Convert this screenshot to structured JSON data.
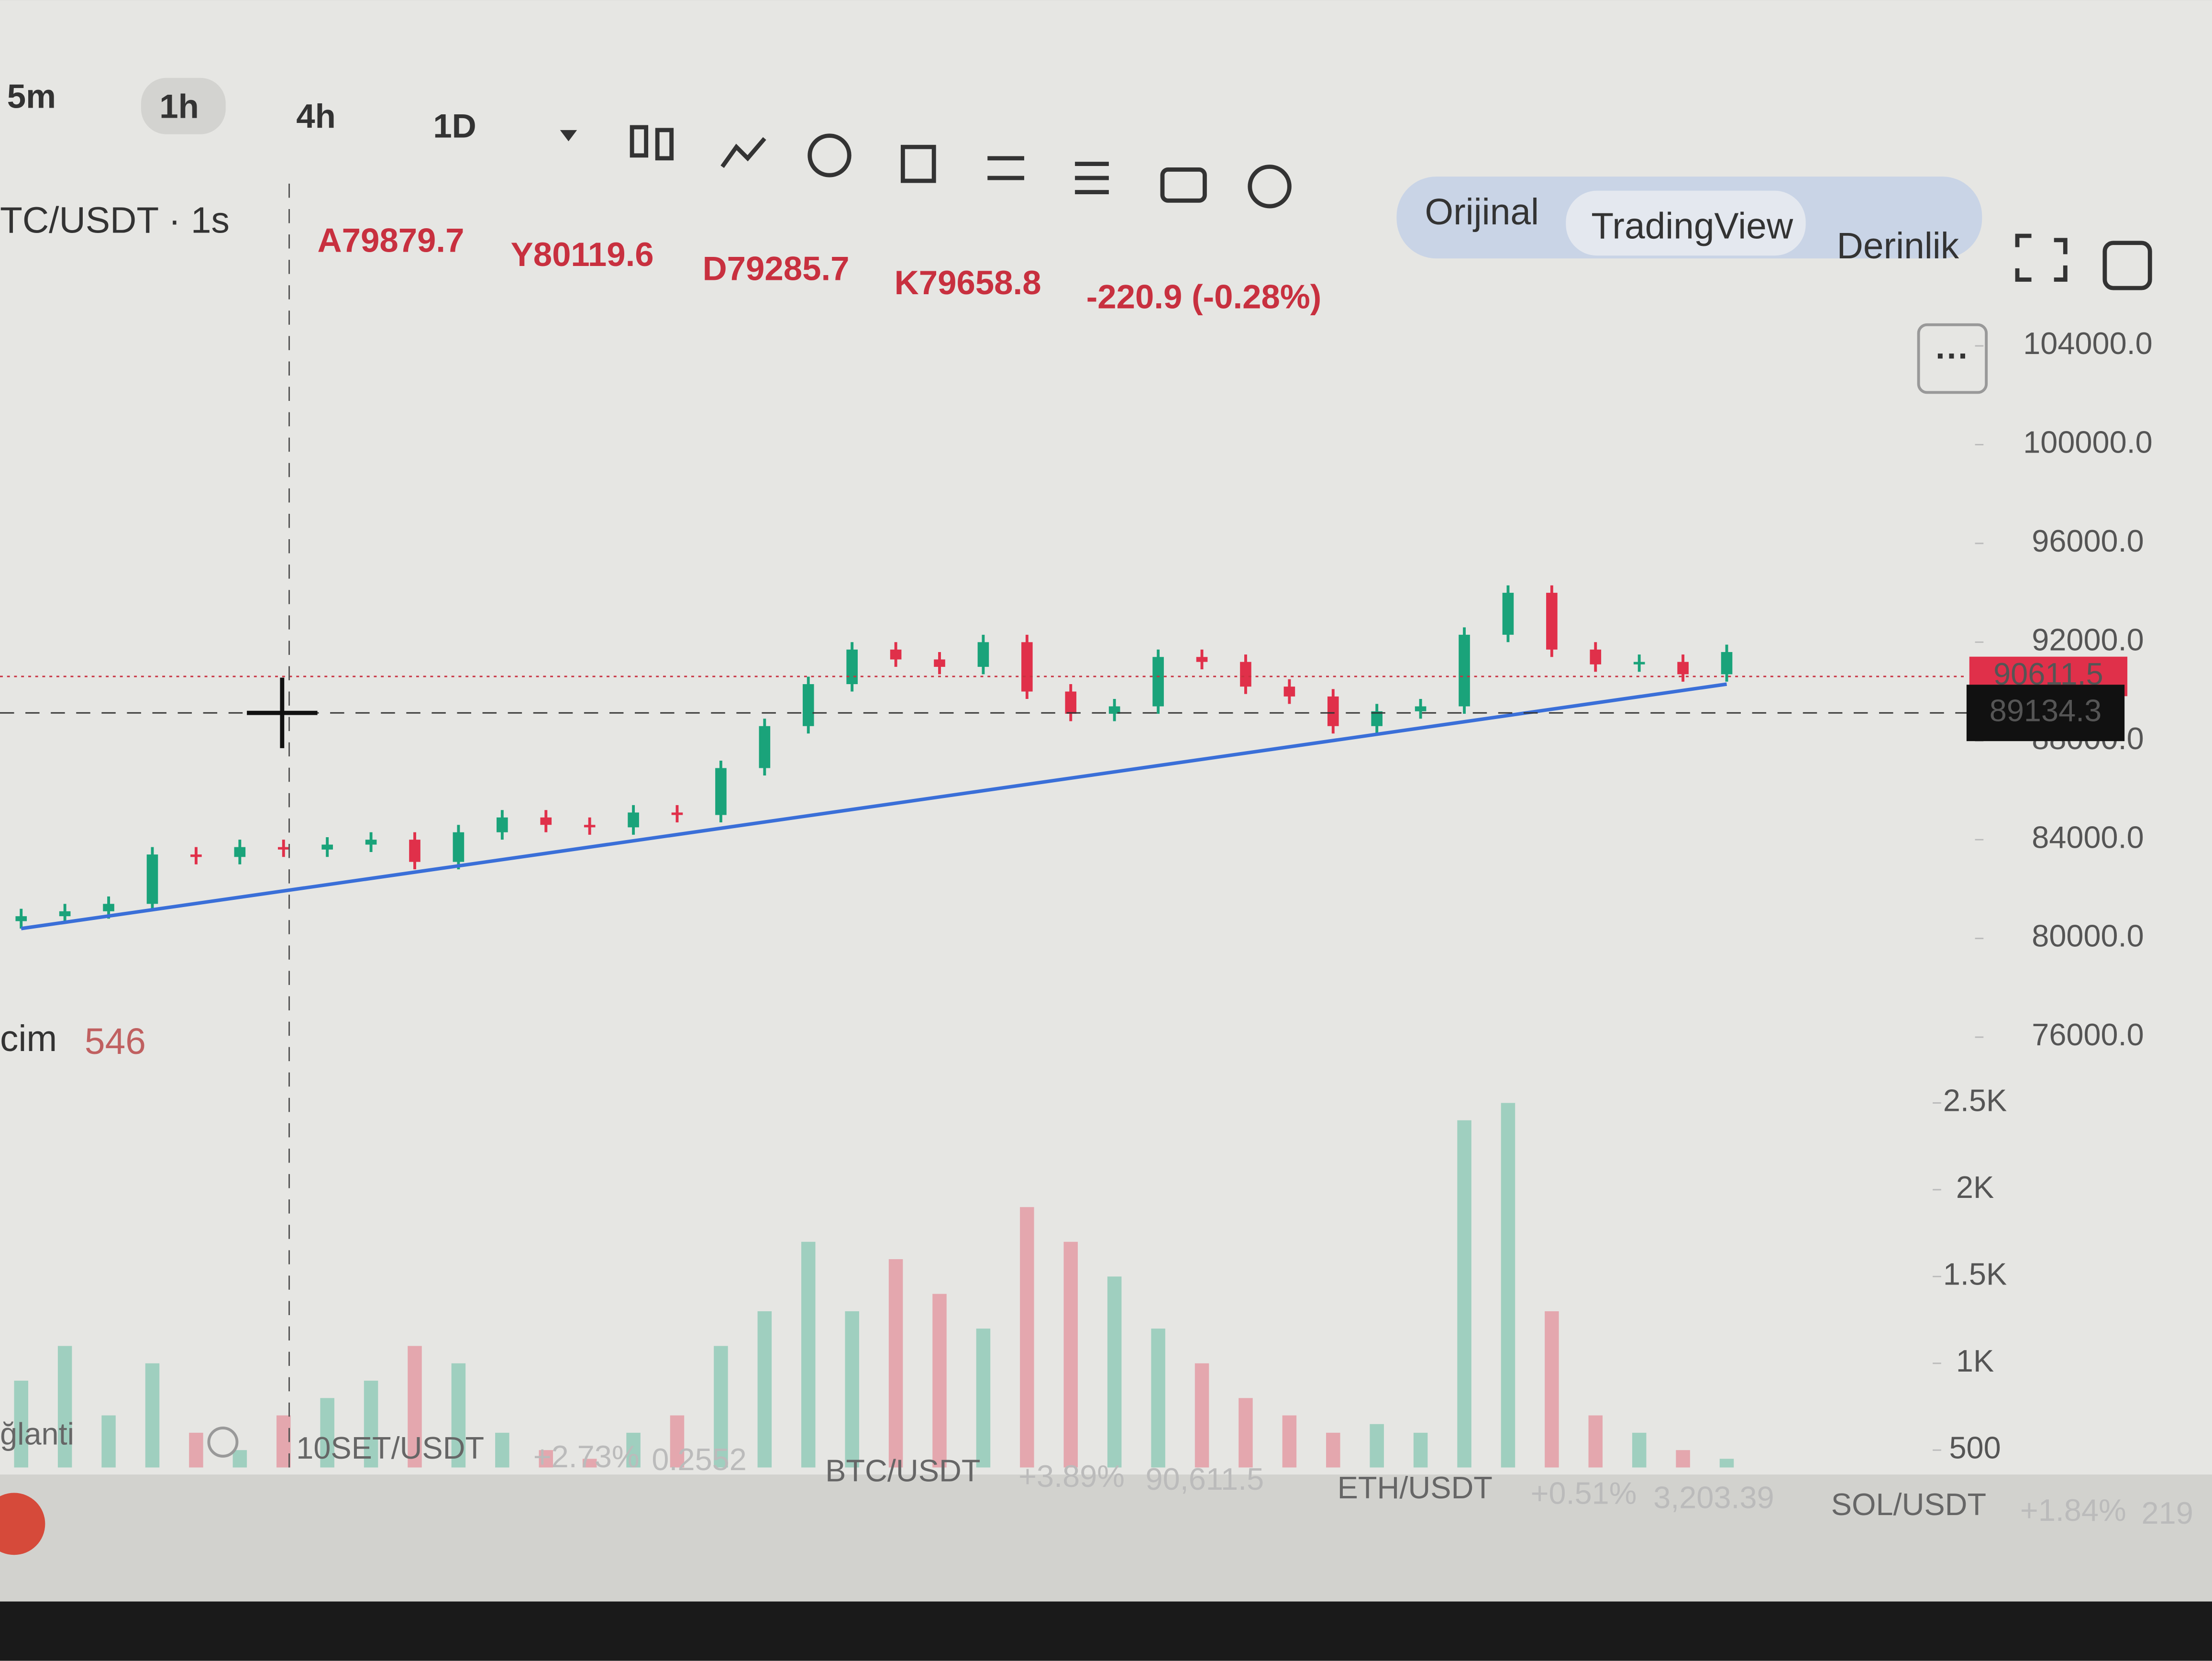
{
  "toolbar": {
    "intervals": [
      "5m",
      "1h",
      "4h",
      "1D"
    ],
    "views": [
      "Orijinal",
      "TradingView",
      "Derinlik"
    ]
  },
  "header": {
    "symbol": "TC/USDT · 1s",
    "ohlc": [
      "A79879.7",
      "Y80119.6",
      "D79285.7",
      "K79658.8"
    ],
    "change": "-220.9 (-0.28%)"
  },
  "volume_label": {
    "name": "cim",
    "value": "546"
  },
  "status": "ğlanti",
  "ticker": [
    {
      "symbol": "10SET/USDT",
      "change": "+2.73%",
      "price": "0.2552"
    },
    {
      "symbol": "BTC/USDT",
      "change": "+3.89%",
      "price": "90,611.5"
    },
    {
      "symbol": "ETH/USDT",
      "change": "+0.51%",
      "price": "3,203.39"
    },
    {
      "symbol": "SOL/USDT",
      "change": "+1.84%",
      "price": "219"
    }
  ],
  "chart_data": {
    "type": "candlestick",
    "up_color": "#1aa37a",
    "down_color": "#e0304a",
    "open": [
      80700,
      80900,
      81100,
      81400,
      83400,
      83300,
      83700,
      83600,
      83800,
      84000,
      83100,
      84300,
      84900,
      84600,
      84500,
      85100,
      85000,
      86900,
      88600,
      90300,
      91700,
      91300,
      91000,
      92000,
      90000,
      89100,
      89400,
      91400,
      91200,
      90200,
      89800,
      88600,
      89200,
      89400,
      92300,
      94000,
      91700,
      91100,
      91200,
      90700
    ],
    "high": [
      81200,
      81400,
      81700,
      83700,
      83700,
      84000,
      84000,
      84100,
      84300,
      84300,
      84600,
      85200,
      85200,
      84900,
      85400,
      85400,
      87200,
      88900,
      90600,
      92000,
      92000,
      91600,
      92300,
      92300,
      90300,
      89700,
      91700,
      91700,
      91500,
      90500,
      90100,
      89500,
      89700,
      92600,
      94300,
      94300,
      92000,
      91500,
      91500,
      91900
    ],
    "low": [
      80400,
      80600,
      80800,
      81100,
      83000,
      83000,
      83300,
      83300,
      83500,
      82800,
      82800,
      84000,
      84300,
      84200,
      84200,
      84700,
      84700,
      86600,
      88300,
      90000,
      91000,
      90700,
      90700,
      89700,
      88800,
      88800,
      89100,
      90900,
      89900,
      89500,
      88300,
      88300,
      88900,
      89100,
      92000,
      91400,
      90800,
      90800,
      90400,
      90400
    ],
    "close": [
      80900,
      81100,
      81400,
      83400,
      83300,
      83700,
      83600,
      83800,
      84000,
      83100,
      84300,
      84900,
      84600,
      84500,
      85100,
      85000,
      86900,
      88600,
      90300,
      91700,
      91300,
      91000,
      92000,
      90000,
      89100,
      89400,
      91400,
      91200,
      90200,
      89800,
      88600,
      89200,
      89400,
      92300,
      94000,
      91700,
      91100,
      91200,
      90700,
      91600
    ],
    "volume": [
      900,
      1100,
      700,
      1000,
      600,
      500,
      700,
      800,
      900,
      1100,
      1000,
      600,
      500,
      450,
      600,
      700,
      1100,
      1300,
      1700,
      1300,
      1600,
      1400,
      1200,
      1900,
      1700,
      1500,
      1200,
      1000,
      800,
      700,
      600,
      650,
      600,
      2400,
      2500,
      1300,
      700,
      600,
      500,
      450
    ],
    "ylim": [
      74000,
      105000
    ],
    "yticks": [
      {
        "value": 76000,
        "label": "76000.0"
      },
      {
        "value": 80000,
        "label": "80000.0"
      },
      {
        "value": 84000,
        "label": "84000.0"
      },
      {
        "value": 88000,
        "label": "88000.0"
      },
      {
        "value": 92000,
        "label": "92000.0"
      },
      {
        "value": 96000,
        "label": "96000.0"
      },
      {
        "value": 100000,
        "label": "100000.0"
      },
      {
        "value": 104000,
        "label": "104000.0"
      }
    ],
    "volume_ylim": [
      400,
      2700
    ],
    "volume_ticks": [
      500,
      {
        "value": 1000,
        "label": "1K"
      },
      {
        "value": 1500,
        "label": "1.5K"
      },
      {
        "value": 2000,
        "label": "2K"
      },
      {
        "value": 2500,
        "label": "2.5K"
      }
    ],
    "last_price": 90611.5,
    "crosshair_price": 89134.3,
    "trendline": {
      "color": "#3a6fd8",
      "values": [
        80400,
        90300
      ]
    }
  }
}
